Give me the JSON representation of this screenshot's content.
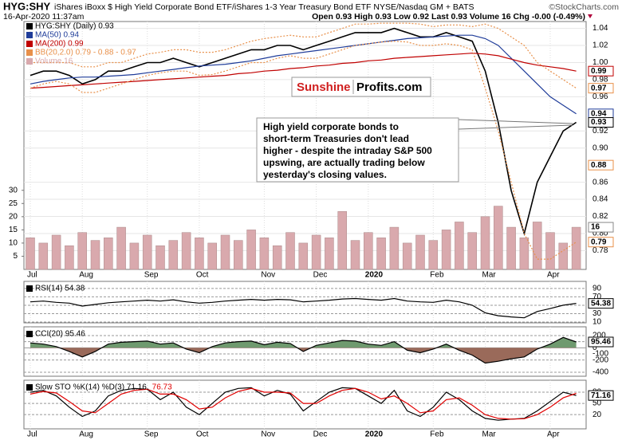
{
  "chart_data": [
    {
      "type": "line",
      "symbol": "HYG:SHY",
      "title": "iShares iBoxx $ High Yield Corporate Bond ETF/iShares 1-3 Year Treasury Bond ETF NYSE/Nasdaq GM + BATS",
      "source": "©StockCharts.com",
      "date": "16-Apr-2020 11:37am",
      "quote": "Open 0.93  High 0.93  Low 0.92  Last 0.93  Volume 16  Chg -0.00 (-0.49%)",
      "categories": [
        "Jul",
        null,
        null,
        null,
        "Aug",
        null,
        null,
        null,
        null,
        "Sep",
        null,
        null,
        null,
        "Oct",
        null,
        null,
        null,
        null,
        "Nov",
        null,
        null,
        null,
        "Dec",
        null,
        null,
        null,
        "2020",
        null,
        null,
        null,
        null,
        "Feb",
        null,
        null,
        null,
        "Mar",
        null,
        null,
        null,
        null,
        "Apr",
        null,
        null
      ],
      "ylim": [
        0.758,
        1.048
      ],
      "yticks": [
        0.78,
        {
          "value": 0.8,
          "label": "0.80"
        },
        0.82,
        0.84,
        0.86,
        {
          "value": 0.9,
          "label": "0.90"
        },
        0.92,
        0.96,
        0.98,
        {
          "value": 1.0,
          "label": "1.00"
        },
        1.02,
        1.04
      ],
      "y2lim": [
        0,
        94
      ],
      "y2ticks": [
        5,
        10,
        15,
        20,
        25,
        30
      ],
      "grid": true,
      "series": [
        {
          "name": "HYG:SHY (Daily) 0.93",
          "color": "#000000",
          "values": [
            0.985,
            0.99,
            0.99,
            0.985,
            0.975,
            0.98,
            0.99,
            0.99,
            0.995,
            1.0,
            1.0,
            1.005,
            1.0,
            0.995,
            1.0,
            1.005,
            1.01,
            1.015,
            1.015,
            1.02,
            1.02,
            1.015,
            1.02,
            1.025,
            1.03,
            1.035,
            1.035,
            1.035,
            1.04,
            1.035,
            1.03,
            1.03,
            1.035,
            1.03,
            1.025,
            0.99,
            0.93,
            0.85,
            0.8,
            0.86,
            0.89,
            0.92,
            0.93
          ]
        },
        {
          "name": "MA(50) 0.94",
          "color": "#1f3c99",
          "values": [
            0.975,
            0.978,
            0.98,
            0.982,
            0.983,
            0.983,
            0.984,
            0.985,
            0.986,
            0.988,
            0.99,
            0.992,
            0.994,
            0.996,
            0.997,
            0.998,
            1.0,
            1.002,
            1.005,
            1.008,
            1.01,
            1.012,
            1.014,
            1.016,
            1.018,
            1.02,
            1.022,
            1.024,
            1.026,
            1.028,
            1.029,
            1.03,
            1.031,
            1.032,
            1.032,
            1.028,
            1.02,
            1.005,
            0.99,
            0.975,
            0.96,
            0.95,
            0.94
          ]
        },
        {
          "name": "MA(200) 0.99",
          "color": "#c00000",
          "values": [
            0.97,
            0.971,
            0.972,
            0.973,
            0.974,
            0.975,
            0.976,
            0.977,
            0.978,
            0.979,
            0.98,
            0.981,
            0.982,
            0.983,
            0.984,
            0.985,
            0.987,
            0.988,
            0.99,
            0.991,
            0.993,
            0.994,
            0.996,
            0.997,
            0.999,
            1.0,
            1.002,
            1.003,
            1.005,
            1.006,
            1.007,
            1.008,
            1.009,
            1.01,
            1.011,
            1.01,
            1.008,
            1.004,
            1.0,
            0.997,
            0.995,
            0.993,
            0.99
          ]
        },
        {
          "name": "BB(20,2.0) 0.79 - 0.88 - 0.97",
          "color": "#e8904a",
          "dashed": true,
          "values": [
            1.0,
            1.0,
            1.0,
            1.0,
            0.995,
            0.995,
            1.0,
            1.0,
            1.005,
            1.01,
            1.012,
            1.015,
            1.015,
            1.012,
            1.012,
            1.015,
            1.02,
            1.025,
            1.028,
            1.03,
            1.032,
            1.03,
            1.03,
            1.035,
            1.04,
            1.045,
            1.045,
            1.046,
            1.046,
            1.046,
            1.045,
            1.042,
            1.044,
            1.044,
            1.042,
            1.045,
            1.04,
            1.03,
            1.02,
            1.0,
            0.99,
            0.98,
            0.97
          ]
        },
        {
          "color": "#e8904a",
          "dashed": true,
          "values": [
            0.97,
            0.975,
            0.978,
            0.975,
            0.965,
            0.965,
            0.97,
            0.975,
            0.98,
            0.985,
            0.988,
            0.99,
            0.99,
            0.985,
            0.986,
            0.99,
            0.995,
            1.0,
            1.0,
            1.005,
            1.008,
            1.005,
            1.005,
            1.01,
            1.015,
            1.02,
            1.022,
            1.024,
            1.025,
            1.024,
            1.02,
            1.02,
            1.022,
            1.02,
            1.015,
            0.97,
            0.92,
            0.86,
            0.8,
            0.77,
            0.77,
            0.78,
            0.79
          ]
        },
        {
          "name": "Volume 16",
          "type": "bar",
          "axis": "y2",
          "color": "#d9a9ad",
          "values": [
            12,
            10,
            13,
            9,
            14,
            11,
            12,
            16,
            10,
            13,
            9,
            11,
            14,
            12,
            10,
            13,
            11,
            15,
            12,
            9,
            14,
            10,
            13,
            12,
            22,
            11,
            14,
            12,
            16,
            10,
            13,
            11,
            15,
            18,
            14,
            20,
            24,
            16,
            12,
            18,
            14,
            10,
            16
          ]
        }
      ],
      "tags": [
        {
          "value": 0.99,
          "label": "0.99",
          "color": "#c00000"
        },
        {
          "value": 0.97,
          "label": "0.97",
          "color": "#e8904a"
        },
        {
          "value": 0.94,
          "label": "0.94",
          "color": "#1f3c99"
        },
        {
          "value": 0.93,
          "label": "0.93",
          "color": "#000000"
        },
        {
          "value": 0.88,
          "label": "0.88",
          "color": "#e8904a"
        },
        {
          "value": 0.79,
          "label": "0.79",
          "color": "#e8904a"
        },
        {
          "value": 16,
          "label": "16",
          "color": "#888888",
          "axis": "y2"
        }
      ],
      "logo": [
        "Sunshine",
        "Profits.com"
      ],
      "annotation": [
        "High yield corporate bonds to",
        "short-term Treasuries don't lead",
        "higher - despite the intraday S&P 500",
        "upswing, are actually trading below",
        "yesterday's closing values."
      ]
    },
    {
      "type": "line",
      "title": "RSI(14) 54.38",
      "ylim": [
        8,
        107
      ],
      "yticks": [
        10,
        30,
        50,
        70,
        90
      ],
      "series": [
        {
          "color": "#000000",
          "values": [
            58,
            60,
            57,
            55,
            48,
            52,
            56,
            58,
            60,
            62,
            60,
            63,
            58,
            55,
            57,
            60,
            62,
            64,
            62,
            64,
            63,
            58,
            60,
            62,
            65,
            66,
            64,
            62,
            66,
            60,
            58,
            57,
            62,
            58,
            50,
            32,
            25,
            22,
            20,
            35,
            42,
            50,
            54.38
          ]
        }
      ],
      "tags": [
        {
          "value": 54.38,
          "label": "54.38",
          "color": "#000000"
        }
      ]
    },
    {
      "type": "area",
      "title": "CCI(20) 95.46",
      "ylim": [
        -465,
        343
      ],
      "yticks": [
        -400,
        -200,
        -100,
        0,
        100,
        200
      ],
      "series": [
        {
          "color": "#000000",
          "values": [
            80,
            60,
            20,
            -60,
            -150,
            -60,
            60,
            90,
            100,
            110,
            60,
            80,
            -20,
            -80,
            20,
            80,
            100,
            110,
            50,
            90,
            70,
            -60,
            40,
            80,
            120,
            110,
            60,
            40,
            100,
            -40,
            -80,
            -20,
            60,
            -40,
            -120,
            -250,
            -220,
            -180,
            -150,
            -20,
            60,
            170,
            95.46
          ]
        }
      ],
      "fill_up": "#6f9a6f",
      "fill_down": "#9a6a5a",
      "tags": [
        {
          "value": 95.46,
          "label": "95.46",
          "color": "#000000"
        }
      ]
    },
    {
      "type": "line",
      "title": "Slow STO %K(14) %D(3) 71.16,",
      "title_value": "76.73",
      "ylim": [
        -18,
        112
      ],
      "yticks": [
        20,
        50,
        80
      ],
      "series": [
        {
          "color": "#000000",
          "values": [
            80,
            85,
            70,
            40,
            15,
            30,
            70,
            85,
            90,
            88,
            60,
            80,
            40,
            20,
            50,
            80,
            90,
            92,
            70,
            85,
            75,
            30,
            55,
            80,
            92,
            90,
            70,
            50,
            85,
            30,
            15,
            40,
            80,
            60,
            30,
            10,
            5,
            8,
            10,
            30,
            55,
            80,
            71.16
          ]
        },
        {
          "color": "#e00000",
          "values": [
            75,
            82,
            78,
            55,
            30,
            25,
            50,
            75,
            85,
            88,
            75,
            75,
            60,
            35,
            40,
            65,
            82,
            90,
            80,
            80,
            78,
            50,
            50,
            70,
            85,
            90,
            80,
            62,
            70,
            50,
            25,
            30,
            60,
            65,
            45,
            20,
            10,
            8,
            9,
            20,
            40,
            65,
            76.73
          ]
        }
      ],
      "tags": [
        {
          "value": 71.16,
          "label": "71.16",
          "color": "#000000"
        }
      ]
    }
  ]
}
